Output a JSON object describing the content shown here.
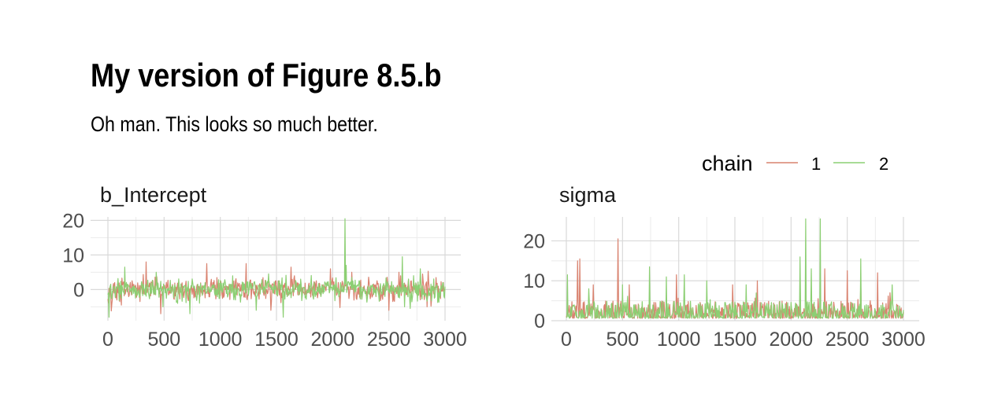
{
  "title": "My version of Figure 8.5.b",
  "subtitle": "Oh man. This looks so much better.",
  "colors": {
    "chain1": "#d9826f",
    "chain2": "#8ccf73",
    "grid_major": "#d9d9d9",
    "grid_minor": "#ebebeb"
  },
  "chart_data": {
    "type": "line",
    "legend": {
      "title": "chain",
      "entries": [
        "1",
        "2"
      ],
      "position": "top-right"
    },
    "panels": [
      {
        "name": "b_Intercept",
        "xlim": [
          0,
          3000
        ],
        "ylim": [
          -9,
          21
        ],
        "xticks": [
          0,
          500,
          1000,
          1500,
          2000,
          2500,
          3000
        ],
        "xtick_labels": [
          "0",
          "500",
          "1000",
          "1500",
          "2000",
          "2500",
          "3000"
        ],
        "yticks": [
          0,
          10,
          20
        ],
        "ytick_labels": [
          "0",
          "10",
          "20"
        ],
        "series": [
          {
            "name": "1",
            "base": 0,
            "noise": 1.5,
            "spikes": [
              [
                120,
                -4.5
              ],
              [
                340,
                8
              ],
              [
                470,
                -7
              ],
              [
                880,
                7.5
              ],
              [
                1230,
                7.5
              ],
              [
                1450,
                -6
              ],
              [
                1630,
                6.5
              ],
              [
                1980,
                6
              ],
              [
                2170,
                5
              ],
              [
                2500,
                -6
              ],
              [
                2590,
                5
              ],
              [
                2840,
                -5
              ]
            ]
          },
          {
            "name": "2",
            "base": 0,
            "noise": 1.5,
            "spikes": [
              [
                10,
                -8
              ],
              [
                150,
                6.5
              ],
              [
                430,
                5
              ],
              [
                730,
                -7
              ],
              [
                1320,
                -6
              ],
              [
                1560,
                -8
              ],
              [
                2110,
                20.5
              ],
              [
                2120,
                7
              ],
              [
                2620,
                9.5
              ],
              [
                2640,
                -5
              ],
              [
                2780,
                6
              ]
            ]
          }
        ]
      },
      {
        "name": "sigma",
        "xlim": [
          0,
          3000
        ],
        "ylim": [
          0,
          26
        ],
        "xticks": [
          0,
          500,
          1000,
          1500,
          2000,
          2500,
          3000
        ],
        "xtick_labels": [
          "0",
          "500",
          "1000",
          "1500",
          "2000",
          "2500",
          "3000"
        ],
        "yticks": [
          0,
          10,
          20
        ],
        "ytick_labels": [
          "0",
          "10",
          "20"
        ],
        "series": [
          {
            "name": "1",
            "base": 2,
            "noise": 1.2,
            "spikes": [
              [
                100,
                15
              ],
              [
                120,
                15.5
              ],
              [
                240,
                9
              ],
              [
                460,
                20.5
              ],
              [
                560,
                9
              ],
              [
                980,
                11.5
              ],
              [
                1480,
                9
              ],
              [
                1700,
                10
              ],
              [
                2300,
                13
              ],
              [
                2500,
                12.5
              ],
              [
                2620,
                10
              ],
              [
                2770,
                12
              ],
              [
                2880,
                7
              ]
            ]
          },
          {
            "name": "2",
            "base": 2,
            "noise": 1.2,
            "spikes": [
              [
                10,
                11.5
              ],
              [
                200,
                8
              ],
              [
                500,
                9
              ],
              [
                740,
                13.5
              ],
              [
                890,
                11
              ],
              [
                1050,
                11.5
              ],
              [
                1250,
                10
              ],
              [
                1600,
                9
              ],
              [
                2080,
                16
              ],
              [
                2130,
                25.5
              ],
              [
                2180,
                13
              ],
              [
                2260,
                25.5
              ],
              [
                2620,
                15.5
              ],
              [
                2900,
                9
              ]
            ]
          }
        ]
      }
    ]
  }
}
